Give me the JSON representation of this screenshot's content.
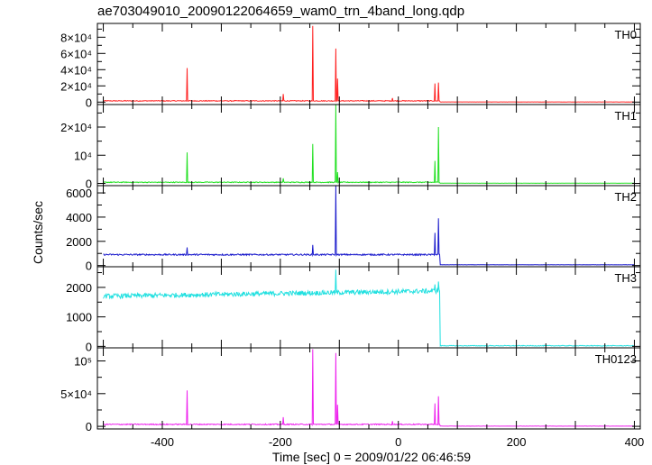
{
  "chart_data": {
    "type": "line",
    "title": "ae703049010_20090122064659_wam0_trn_4band_long.qdp",
    "xlabel": "Time [sec] 0 = 2009/01/22 06:46:59",
    "ylabel": "Counts/sec",
    "xlim": [
      -510,
      410
    ],
    "x_ticks": [
      "-400",
      "-200",
      "0",
      "200",
      "400"
    ],
    "x_tick_values": [
      -400,
      -200,
      0,
      200,
      400
    ],
    "panels": [
      {
        "name": "TH0",
        "color": "#ff2020",
        "ylim": [
          -3000,
          97000
        ],
        "yticks": [
          0,
          20000,
          40000,
          60000,
          80000
        ],
        "ytick_labels": [
          "0",
          "2×10⁴",
          "4×10⁴",
          "6×10⁴",
          "8×10⁴"
        ],
        "baseline": 1500,
        "noise": 500,
        "drop_after": 70,
        "drop_level": 200,
        "spikes": [
          [
            -358,
            42000
          ],
          [
            -195,
            10000
          ],
          [
            -145,
            94000
          ],
          [
            -106,
            66000
          ],
          [
            -103,
            29000
          ],
          [
            -10,
            5000
          ],
          [
            62,
            23000
          ],
          [
            68,
            24000
          ]
        ]
      },
      {
        "name": "TH1",
        "color": "#20e020",
        "ylim": [
          -800,
          28000
        ],
        "yticks": [
          0,
          10000,
          20000
        ],
        "ytick_labels": [
          "0",
          "10⁴",
          "2×10⁴"
        ],
        "baseline": 400,
        "noise": 150,
        "drop_after": 70,
        "drop_level": 60,
        "spikes": [
          [
            -358,
            11000
          ],
          [
            -195,
            1800
          ],
          [
            -145,
            14000
          ],
          [
            -106,
            28000
          ],
          [
            -103,
            4000
          ],
          [
            62,
            8000
          ],
          [
            68,
            20000
          ]
        ]
      },
      {
        "name": "TH2",
        "color": "#1a1acc",
        "ylim": [
          -100,
          6600
        ],
        "yticks": [
          0,
          2000,
          4000,
          6000
        ],
        "ytick_labels": [
          "0",
          "2000",
          "4000",
          "6000"
        ],
        "baseline": 900,
        "noise": 60,
        "drop_after": 70,
        "drop_level": 60,
        "spikes": [
          [
            -358,
            1500
          ],
          [
            -145,
            1700
          ],
          [
            -106,
            6600
          ],
          [
            62,
            2700
          ],
          [
            68,
            3900
          ]
        ]
      },
      {
        "name": "TH3",
        "color": "#20e0e0",
        "ylim": [
          -50,
          2700
        ],
        "yticks": [
          0,
          1000,
          2000
        ],
        "ytick_labels": [
          "0",
          "1000",
          "2000"
        ],
        "baseline": 1700,
        "trend_end": 1880,
        "noise": 80,
        "drop_after": 70,
        "drop_level": 20,
        "spikes": [
          [
            -106,
            2600
          ],
          [
            62,
            2100
          ],
          [
            68,
            2200
          ]
        ]
      },
      {
        "name": "TH0123",
        "color": "#ee22ee",
        "ylim": [
          -4000,
          120000
        ],
        "yticks": [
          0,
          50000,
          100000
        ],
        "ytick_labels": [
          "0",
          "5×10⁴",
          "10⁵"
        ],
        "baseline": 3000,
        "noise": 800,
        "drop_after": 70,
        "drop_level": 300,
        "spikes": [
          [
            -358,
            55000
          ],
          [
            -195,
            14000
          ],
          [
            -145,
            118000
          ],
          [
            -106,
            112000
          ],
          [
            -103,
            33000
          ],
          [
            -10,
            8000
          ],
          [
            62,
            35000
          ],
          [
            68,
            46000
          ]
        ]
      }
    ]
  }
}
